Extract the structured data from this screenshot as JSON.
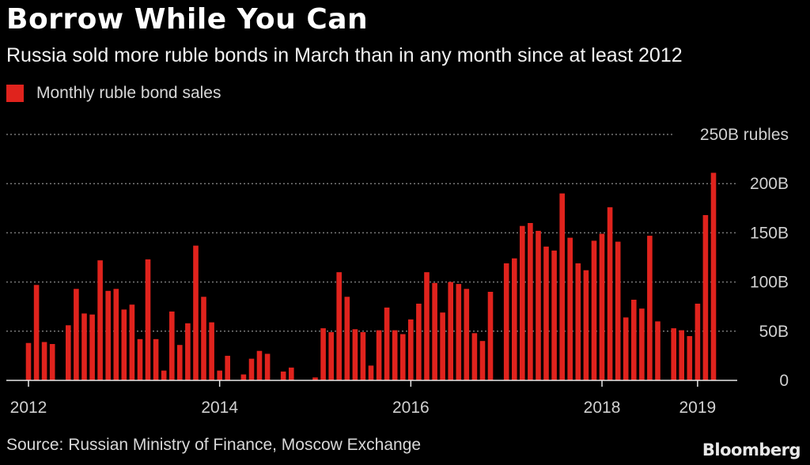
{
  "header": {
    "title": "Borrow While You Can",
    "subtitle": "Russia sold more ruble bonds in March than in any month since at least 2012"
  },
  "legend": {
    "label": "Monthly ruble bond sales"
  },
  "footer": {
    "source": "Source: Russian Ministry of Finance, Moscow Exchange",
    "logo": "Bloomberg"
  },
  "colors": {
    "bar": "#e0231d",
    "grid": "#777777",
    "background": "#000000"
  },
  "chart_data": {
    "type": "bar",
    "title": "Borrow While You Can",
    "subtitle": "Russia sold more ruble bonds in March than in any month since at least 2012",
    "series": [
      {
        "name": "Monthly ruble bond sales",
        "values": [
          38,
          97,
          39,
          37,
          0,
          56,
          93,
          68,
          67,
          122,
          91,
          93,
          72,
          77,
          42,
          123,
          42,
          10,
          70,
          36,
          58,
          137,
          85,
          59,
          10,
          25,
          0,
          6,
          22,
          30,
          27,
          0,
          9,
          13,
          0,
          0,
          3,
          53,
          49,
          110,
          85,
          52,
          49,
          15,
          51,
          74,
          51,
          47,
          62,
          78,
          110,
          99,
          69,
          100,
          98,
          93,
          48,
          40,
          90,
          0,
          119,
          124,
          157,
          160,
          152,
          136,
          132,
          190,
          145,
          119,
          112,
          142,
          149,
          176,
          141,
          64,
          82,
          73,
          147,
          60,
          0,
          53,
          51,
          45,
          78,
          168,
          211
        ]
      }
    ],
    "x_start": "2012-01",
    "x_end": "2019-03",
    "x_ticks": [
      "2012",
      "2014",
      "2016",
      "2018",
      "2019"
    ],
    "x_tick_months": [
      "2012-01",
      "2014-01",
      "2016-01",
      "2018-01",
      "2019-01"
    ],
    "y_ticks": [
      {
        "value": 0,
        "label": "0"
      },
      {
        "value": 50,
        "label": "50B"
      },
      {
        "value": 100,
        "label": "100B"
      },
      {
        "value": 150,
        "label": "150B"
      },
      {
        "value": 200,
        "label": "200B"
      },
      {
        "value": 250,
        "label": "250B rubles"
      }
    ],
    "ylim": [
      0,
      250
    ],
    "grid": true,
    "legend_position": "top-left",
    "y_axis_position": "right"
  }
}
